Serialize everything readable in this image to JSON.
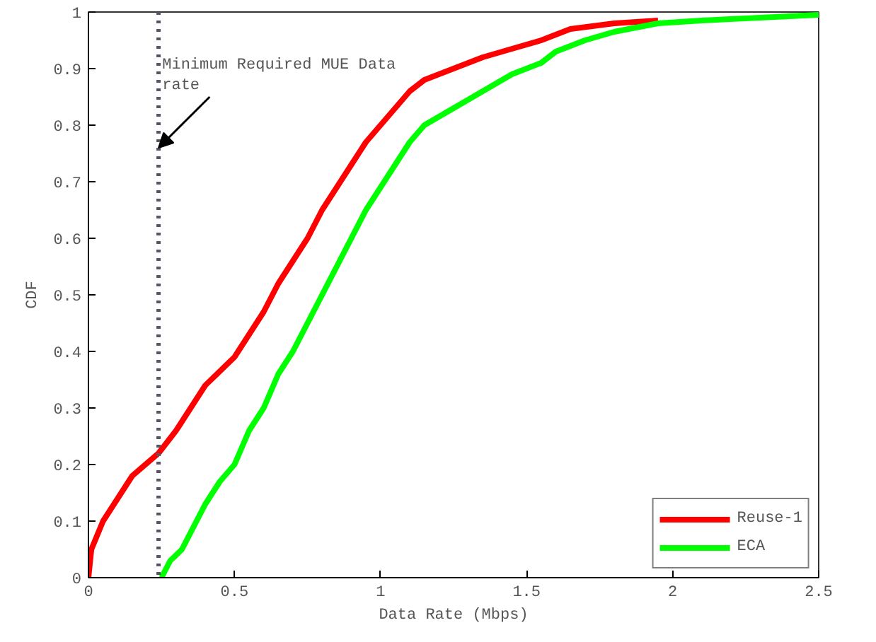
{
  "chart_data": {
    "type": "line",
    "xlabel": "Data Rate (Mbps)",
    "ylabel": "CDF",
    "xlim": [
      0,
      2.5
    ],
    "xticks": [
      0,
      0.5,
      1,
      1.5,
      2,
      2.5
    ],
    "ylim": [
      0,
      1
    ],
    "yticks": [
      0,
      0.1,
      0.2,
      0.3,
      0.4,
      0.5,
      0.6,
      0.7,
      0.8,
      0.9,
      1
    ],
    "grid": false,
    "legend": "bottom right",
    "marker": "none",
    "line_style": "solid",
    "series": [
      {
        "name": "Reuse-1",
        "color": "#ff0000",
        "x": [
          0,
          0.01,
          0.05,
          0.1,
          0.15,
          0.24,
          0.3,
          0.35,
          0.4,
          0.5,
          0.55,
          0.6,
          0.65,
          0.7,
          0.75,
          0.8,
          0.85,
          0.9,
          0.95,
          1.0,
          1.05,
          1.1,
          1.15,
          1.25,
          1.35,
          1.45,
          1.55,
          1.65,
          1.8,
          1.95
        ],
        "values": [
          0,
          0.05,
          0.1,
          0.14,
          0.18,
          0.22,
          0.26,
          0.3,
          0.34,
          0.39,
          0.43,
          0.47,
          0.52,
          0.56,
          0.6,
          0.65,
          0.69,
          0.73,
          0.77,
          0.8,
          0.83,
          0.86,
          0.88,
          0.9,
          0.92,
          0.935,
          0.95,
          0.97,
          0.98,
          0.985
        ]
      },
      {
        "name": "ECA",
        "color": "#00ff00",
        "x": [
          0.25,
          0.28,
          0.32,
          0.35,
          0.4,
          0.45,
          0.5,
          0.55,
          0.6,
          0.65,
          0.7,
          0.75,
          0.8,
          0.85,
          0.9,
          0.95,
          1.0,
          1.05,
          1.1,
          1.15,
          1.25,
          1.35,
          1.45,
          1.55,
          1.6,
          1.7,
          1.8,
          1.95,
          2.1,
          2.3,
          2.5
        ],
        "values": [
          0,
          0.03,
          0.05,
          0.08,
          0.13,
          0.17,
          0.2,
          0.26,
          0.3,
          0.36,
          0.4,
          0.45,
          0.5,
          0.55,
          0.6,
          0.65,
          0.69,
          0.73,
          0.77,
          0.8,
          0.83,
          0.86,
          0.89,
          0.91,
          0.93,
          0.95,
          0.965,
          0.98,
          0.985,
          0.99,
          0.995
        ]
      }
    ],
    "ref_lines": [
      {
        "axis": "x",
        "value": 0.24,
        "color": "#555566",
        "line_style": "dotted"
      }
    ],
    "annotations": [
      {
        "text": "Minimum Required MUE Data rate",
        "x": 0.24,
        "y": 0.76
      }
    ]
  }
}
